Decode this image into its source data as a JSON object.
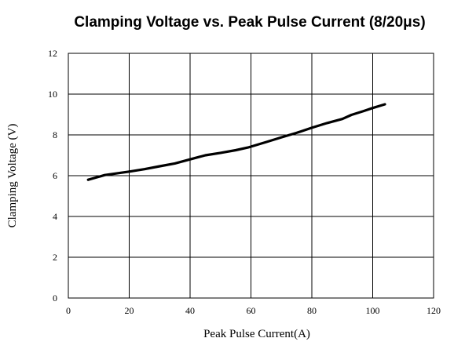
{
  "chart_data": {
    "type": "line",
    "title": "Clamping Voltage vs. Peak Pulse Current (8/20μs)",
    "xlabel": "Peak Pulse Current(A)",
    "ylabel": "Clamping Voltage (V)",
    "xlim": [
      0,
      120
    ],
    "ylim": [
      0,
      12
    ],
    "xticks": [
      0,
      20,
      40,
      60,
      80,
      100,
      120
    ],
    "yticks": [
      0,
      2,
      4,
      6,
      8,
      10,
      12
    ],
    "grid": true,
    "line_color": "#000000",
    "series": [
      {
        "x": [
          6.5,
          12,
          20,
          25,
          30,
          35,
          40,
          45,
          50,
          55,
          59,
          65,
          70,
          75,
          80,
          85,
          90,
          93,
          97,
          100,
          104
        ],
        "y": [
          5.8,
          6.03,
          6.2,
          6.32,
          6.46,
          6.6,
          6.8,
          7.0,
          7.12,
          7.25,
          7.38,
          7.65,
          7.88,
          8.1,
          8.35,
          8.58,
          8.78,
          8.98,
          9.17,
          9.32,
          9.5
        ]
      }
    ]
  }
}
